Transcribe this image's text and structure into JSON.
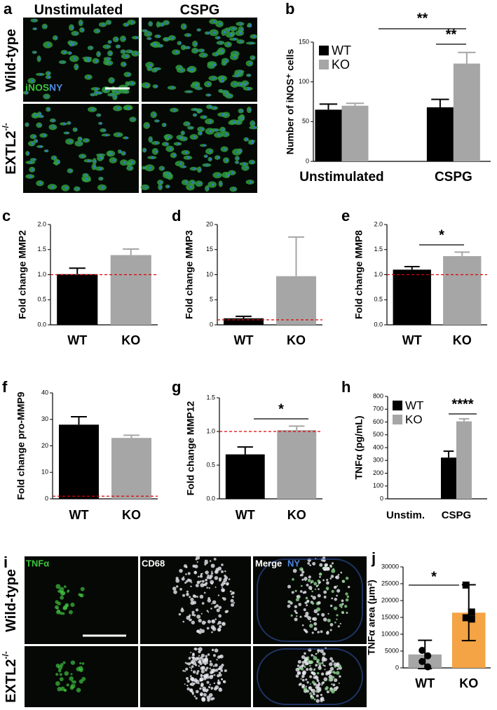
{
  "panel_a": {
    "letter": "a",
    "columns": [
      "Unstimulated",
      "CSPG"
    ],
    "rows": [
      {
        "text": "Wild-type"
      },
      {
        "text": "EXTL2",
        "sup": "-/-"
      }
    ],
    "stain": [
      "iNOS",
      "NY"
    ]
  },
  "panel_i": {
    "letter": "i",
    "channels": [
      "TNFα",
      "CD68",
      "Merge",
      "NY"
    ],
    "rows": [
      {
        "text": "Wild-type"
      },
      {
        "text": "EXTL2",
        "sup": "-/-"
      }
    ]
  },
  "chart_data": [
    {
      "letter": "b",
      "type": "grouped_bar",
      "ylabel": "Number of iNOS⁺ cells",
      "categories": [
        "Unstimulated",
        "CSPG"
      ],
      "series": [
        {
          "name": "WT",
          "color": "#000000",
          "values": [
            65,
            68
          ],
          "errors": [
            7,
            10
          ]
        },
        {
          "name": "KO",
          "color": "#a6a6a6",
          "values": [
            70,
            123
          ],
          "errors": [
            3,
            14
          ]
        }
      ],
      "ylim": [
        0,
        150
      ],
      "yticks": [
        0,
        50,
        100,
        150
      ],
      "annotations": [
        "**",
        "**"
      ],
      "legend": "upper left"
    },
    {
      "letter": "c",
      "type": "bar",
      "ylabel": "Fold change MMP2",
      "categories": [
        "WT",
        "KO"
      ],
      "values": [
        1.01,
        1.39
      ],
      "errors": [
        0.12,
        0.12
      ],
      "colors": [
        "#000000",
        "#a6a6a6"
      ],
      "ylim": [
        0,
        2
      ],
      "yticks": [
        {
          "value": 0,
          "label": "0.0"
        },
        {
          "value": 0.5,
          "label": "0.5"
        },
        {
          "value": 1,
          "label": "1.0"
        },
        {
          "value": 1.5,
          "label": "1.5"
        },
        {
          "value": 2,
          "label": "2.0"
        }
      ],
      "ref_line": {
        "value": 1,
        "color": "#e00000"
      }
    },
    {
      "letter": "d",
      "type": "bar",
      "ylabel": "Fold change MMP3",
      "categories": [
        "WT",
        "KO"
      ],
      "values": [
        1.3,
        9.7
      ],
      "errors": [
        0.4,
        7.8
      ],
      "colors": [
        "#000000",
        "#a6a6a6"
      ],
      "ylim": [
        0,
        20
      ],
      "yticks": [
        0,
        5,
        10,
        15,
        20
      ],
      "ref_line": {
        "value": 1,
        "color": "#e00000"
      }
    },
    {
      "letter": "e",
      "type": "bar",
      "ylabel": "Fold change MMP8",
      "categories": [
        "WT",
        "KO"
      ],
      "values": [
        1.1,
        1.37
      ],
      "errors": [
        0.06,
        0.08
      ],
      "colors": [
        "#000000",
        "#a6a6a6"
      ],
      "ylim": [
        0,
        2
      ],
      "yticks": [
        {
          "value": 0,
          "label": "0.0"
        },
        {
          "value": 0.5,
          "label": "0.5"
        },
        {
          "value": 1,
          "label": "1.0"
        },
        {
          "value": 1.5,
          "label": "1.5"
        },
        {
          "value": 2,
          "label": "2.0"
        }
      ],
      "ref_line": {
        "value": 1,
        "color": "#e00000"
      },
      "annotations": [
        "*"
      ]
    },
    {
      "letter": "f",
      "type": "bar",
      "ylabel": "Fold change pro-MMP9",
      "categories": [
        "WT",
        "KO"
      ],
      "values": [
        28,
        23
      ],
      "errors": [
        3,
        1
      ],
      "colors": [
        "#000000",
        "#a6a6a6"
      ],
      "ylim": [
        0,
        40
      ],
      "yticks": [
        0,
        10,
        20,
        30,
        40
      ],
      "ref_line": {
        "value": 1,
        "color": "#e00000"
      }
    },
    {
      "letter": "g",
      "type": "bar",
      "ylabel": "Fold change MMP12",
      "categories": [
        "WT",
        "KO"
      ],
      "values": [
        0.66,
        1.02
      ],
      "errors": [
        0.11,
        0.06
      ],
      "colors": [
        "#000000",
        "#a6a6a6"
      ],
      "ylim": [
        0,
        1.5
      ],
      "yticks": [
        {
          "value": 0,
          "label": "0.0"
        },
        {
          "value": 0.5,
          "label": "0.5"
        },
        {
          "value": 1,
          "label": "1.0"
        },
        {
          "value": 1.5,
          "label": "1.5"
        }
      ],
      "ref_line": {
        "value": 1,
        "color": "#e00000"
      },
      "annotations": [
        "*"
      ]
    },
    {
      "letter": "h",
      "type": "grouped_bar",
      "ylabel": "TNFα (pg/mL)",
      "categories": [
        "Unstim.",
        "CSPG"
      ],
      "series": [
        {
          "name": "WT",
          "color": "#000000",
          "values": [
            null,
            322
          ],
          "errors": [
            null,
            50
          ]
        },
        {
          "name": "KO",
          "color": "#a6a6a6",
          "values": [
            null,
            605
          ],
          "errors": [
            null,
            20
          ]
        }
      ],
      "ylim": [
        0,
        800
      ],
      "yticks": [
        0,
        100,
        200,
        300,
        400,
        500,
        600,
        700,
        800
      ],
      "annotations": [
        "****"
      ],
      "legend": "upper left"
    },
    {
      "letter": "j",
      "type": "bar",
      "ylabel": "TNFα area (μm²)",
      "categories": [
        "WT",
        "KO"
      ],
      "values": [
        4000,
        16400
      ],
      "errors": [
        4200,
        8300
      ],
      "colors": [
        "#a6a6a6",
        "#f4a444"
      ],
      "points": [
        [
          5200,
          3600,
          1900,
          300
        ],
        [
          24600,
          16600,
          14900,
          14500
        ]
      ],
      "markers": [
        "circle",
        "square"
      ],
      "ylim": [
        0,
        30000
      ],
      "yticks": [
        0,
        5000,
        10000,
        15000,
        20000,
        25000,
        30000
      ],
      "annotations": [
        "*"
      ]
    }
  ]
}
